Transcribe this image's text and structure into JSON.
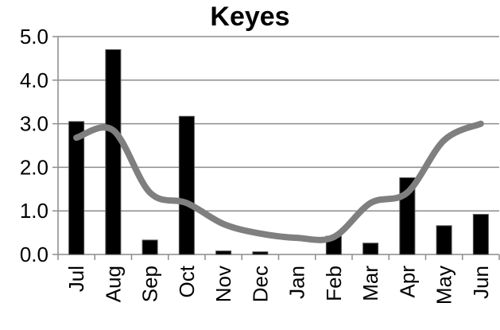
{
  "chart_data": {
    "type": "bar",
    "title": "Keyes",
    "xlabel": "",
    "ylabel": "",
    "categories": [
      "Jul",
      "Aug",
      "Sep",
      "Oct",
      "Nov",
      "Dec",
      "Jan",
      "Feb",
      "Mar",
      "Apr",
      "May",
      "Jun"
    ],
    "ylim": [
      0,
      5
    ],
    "yticks": [
      "0.0",
      "1.0",
      "2.0",
      "3.0",
      "4.0",
      "5.0"
    ],
    "grid": true,
    "legend": "none",
    "series": [
      {
        "type": "bar",
        "color": "#000000",
        "values": [
          3.05,
          4.7,
          0.33,
          3.17,
          0.08,
          0.06,
          0.0,
          0.42,
          0.26,
          1.76,
          0.66,
          0.92
        ]
      },
      {
        "type": "line",
        "color": "#7f7f7f",
        "values": [
          2.68,
          2.85,
          1.42,
          1.18,
          0.7,
          0.48,
          0.38,
          0.4,
          1.18,
          1.42,
          2.62,
          3.0
        ]
      }
    ]
  }
}
